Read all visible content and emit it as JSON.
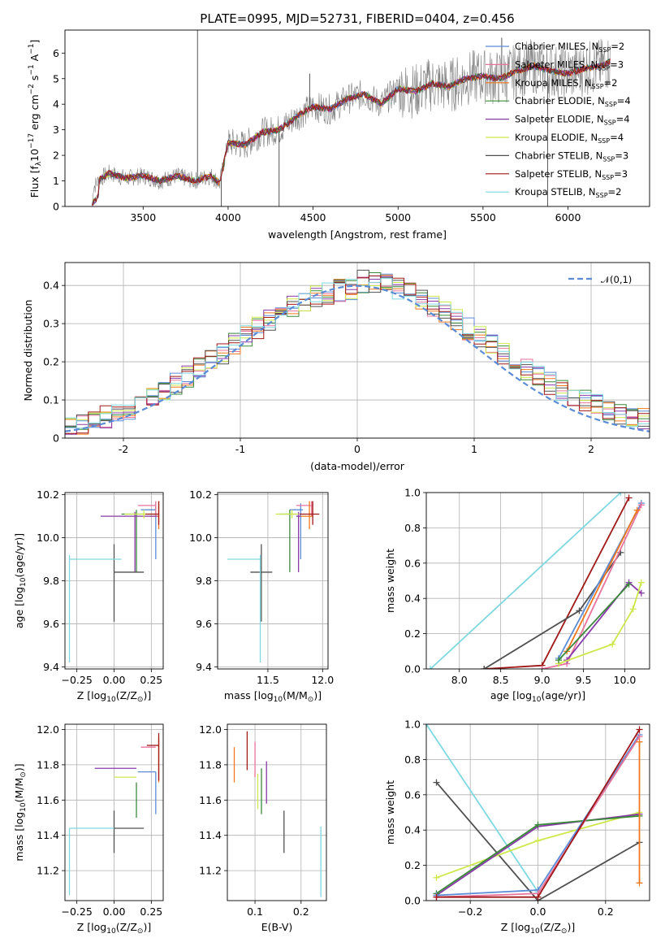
{
  "figure": {
    "title": "PLATE=0995, MJD=52731, FIBERID=0404, z=0.456"
  },
  "models": [
    {
      "name": "Chabrier MILES, N$_{SSP}$=2",
      "label": "Chabrier MILES, N",
      "sub": "SSP",
      "tail": "=2",
      "color": "#5b8bd6"
    },
    {
      "name": "Salpeter MILES, N$_{SSP}$=3",
      "label": "Salpeter MILES, N",
      "sub": "SSP",
      "tail": "=3",
      "color": "#e8739b"
    },
    {
      "name": "Kroupa MILES, N$_{SSP}$=2",
      "label": "Kroupa MILES, N",
      "sub": "SSP",
      "tail": "=2",
      "color": "#f0781e"
    },
    {
      "name": "Chabrier ELODIE, N$_{SSP}$=4",
      "label": "Chabrier ELODIE, N",
      "sub": "SSP",
      "tail": "=4",
      "color": "#3a8a3a"
    },
    {
      "name": "Salpeter ELODIE, N$_{SSP}$=4",
      "label": "Salpeter ELODIE, N",
      "sub": "SSP",
      "tail": "=4",
      "color": "#8a3aa8"
    },
    {
      "name": "Kroupa ELODIE, N$_{SSP}$=4",
      "label": "Kroupa ELODIE, N",
      "sub": "SSP",
      "tail": "=4",
      "color": "#cde84a"
    },
    {
      "name": "Chabrier STELIB, N$_{SSP}$=3",
      "label": "Chabrier STELIB, N",
      "sub": "SSP",
      "tail": "=3",
      "color": "#505050"
    },
    {
      "name": "Salpeter STELIB, N$_{SSP}$=3",
      "label": "Salpeter STELIB, N",
      "sub": "SSP",
      "tail": "=3",
      "color": "#a01818"
    },
    {
      "name": "Kroupa STELIB, N$_{SSP}$=2",
      "label": "Kroupa STELIB, N",
      "sub": "SSP",
      "tail": "=2",
      "color": "#7fd8e0"
    }
  ],
  "chart_data": [
    {
      "id": "spectrum",
      "type": "line",
      "xlabel": "wavelength [Angstrom, rest frame]",
      "ylabel_pre": "Flux [f",
      "ylabel_sub": "λ",
      "ylabel_mid": "10",
      "ylabel_sup": "−17",
      "ylabel_post": " erg cm",
      "ylabel_sup2": "−2",
      "ylabel_post2": " s",
      "ylabel_sup3": "−1",
      "ylabel_post3": " A",
      "ylabel_sup4": "−1",
      "ylabel_end": "]",
      "xlim": [
        3040,
        6480
      ],
      "ylim": [
        0,
        6.9
      ],
      "xticks": [
        3500,
        4000,
        4500,
        5000,
        5500,
        6000
      ],
      "yticks": [
        0,
        1,
        2,
        3,
        4,
        5,
        6
      ],
      "model_curve": {
        "x": [
          3200,
          3250,
          3300,
          3400,
          3500,
          3600,
          3700,
          3800,
          3900,
          3950,
          4000,
          4100,
          4200,
          4300,
          4400,
          4500,
          4600,
          4700,
          4800,
          4900,
          5000,
          5100,
          5200,
          5300,
          5400,
          5500,
          5600,
          5700,
          5800,
          5900,
          6000,
          6100,
          6200,
          6250
        ],
        "y": [
          0.7,
          1.1,
          1.3,
          1.1,
          1.2,
          1.0,
          1.2,
          1.0,
          1.2,
          0.9,
          2.5,
          2.4,
          2.9,
          3.0,
          3.5,
          3.9,
          3.8,
          4.2,
          4.4,
          4.0,
          4.6,
          4.5,
          4.8,
          4.7,
          5.0,
          5.1,
          5.0,
          5.3,
          5.5,
          5.3,
          5.2,
          5.4,
          5.5,
          5.7
        ]
      },
      "data_spikes": [
        [
          3820,
          6.9
        ],
        [
          4300,
          0
        ],
        [
          3960,
          0
        ],
        [
          5880,
          0
        ],
        [
          4480,
          5.2
        ],
        [
          5610,
          6.6
        ]
      ]
    },
    {
      "id": "residual_hist",
      "type": "histogram",
      "xlabel": "(data-model)/error",
      "ylabel": "Normed distribution",
      "xlim": [
        -2.5,
        2.5
      ],
      "ylim": [
        0,
        0.46
      ],
      "xticks": [
        -2,
        -1,
        0,
        1,
        2
      ],
      "yticks": [
        0.0,
        0.1,
        0.2,
        0.3,
        0.4
      ],
      "reference": {
        "name": "𝒩(0,1)",
        "mean": 0,
        "sigma": 1,
        "color": "#5b8bd6"
      }
    },
    {
      "id": "age_vs_Z",
      "type": "scatter",
      "xlabel_pre": "Z [log",
      "xlabel_sub": "10",
      "xlabel_post": "(Z/Z",
      "xlabel_sub2": "⊙",
      "xlabel_end": ")]",
      "ylabel_pre": "age  [log",
      "ylabel_sub": "10",
      "ylabel_post": "(age/yr)]",
      "xlim": [
        -0.33,
        0.33
      ],
      "ylim": [
        9.39,
        10.21
      ],
      "xticks": [
        -0.25,
        0.0,
        0.25
      ],
      "xticklabels": [
        "−0.25",
        "0.00",
        "0.25"
      ],
      "yticks": [
        9.4,
        9.6,
        9.8,
        10.0,
        10.2
      ],
      "yticklabels": [
        "9.4",
        "9.6",
        "9.8",
        "10.0",
        "10.2"
      ],
      "points": [
        {
          "m": 0,
          "x": 0.28,
          "y": 10.13,
          "xerr": [
            0.1,
            0.0
          ],
          "yerr": [
            0.23,
            0.03
          ]
        },
        {
          "m": 1,
          "x": 0.28,
          "y": 10.15,
          "xerr": [
            0.12,
            0.0
          ],
          "yerr": [
            0.05,
            0.02
          ]
        },
        {
          "m": 2,
          "x": 0.3,
          "y": 10.1,
          "xerr": [
            0.06,
            0.0
          ],
          "yerr": [
            0.06,
            0.07
          ]
        },
        {
          "m": 3,
          "x": 0.15,
          "y": 10.11,
          "xerr": [
            0.1,
            0.05
          ],
          "yerr": [
            0.27,
            0.02
          ]
        },
        {
          "m": 4,
          "x": 0.14,
          "y": 10.1,
          "xerr": [
            0.23,
            0.15
          ],
          "yerr": [
            0.26,
            0.02
          ]
        },
        {
          "m": 5,
          "x": 0.2,
          "y": 10.11,
          "xerr": [
            0.13,
            0.08
          ],
          "yerr": [
            0.02,
            0.02
          ]
        },
        {
          "m": 6,
          "x": 0.0,
          "y": 9.84,
          "xerr": [
            0.0,
            0.2
          ],
          "yerr": [
            0.23,
            0.13
          ]
        },
        {
          "m": 7,
          "x": 0.3,
          "y": 10.11,
          "xerr": [
            0.09,
            0.0
          ],
          "yerr": [
            0.05,
            0.06
          ]
        },
        {
          "m": 8,
          "x": -0.3,
          "y": 9.9,
          "xerr": [
            0.0,
            0.35
          ],
          "yerr": [
            0.48,
            0.02
          ]
        }
      ]
    },
    {
      "id": "age_vs_mass",
      "type": "scatter",
      "xlabel_pre": "mass [log",
      "xlabel_sub": "10",
      "xlabel_post": "(M/M",
      "xlabel_sub2": "⊙",
      "xlabel_end": ")]",
      "xlim": [
        11.04,
        12.05
      ],
      "ylim": [
        9.39,
        10.21
      ],
      "xticks": [
        11.5,
        12.0
      ],
      "xticklabels": [
        "11.5",
        "12.0"
      ],
      "yticks": [
        9.4,
        9.6,
        9.8,
        10.0,
        10.2
      ],
      "yticklabels": [
        "9.4",
        "9.6",
        "9.8",
        "10.0",
        "10.2"
      ],
      "points": [
        {
          "m": 0,
          "x": 11.8,
          "y": 10.13,
          "xerr": [
            0.1,
            0.02
          ],
          "yerr": [
            0.23,
            0.03
          ]
        },
        {
          "m": 1,
          "x": 11.9,
          "y": 10.15,
          "xerr": [
            0.14,
            0.0
          ],
          "yerr": [
            0.05,
            0.02
          ]
        },
        {
          "m": 2,
          "x": 11.88,
          "y": 10.1,
          "xerr": [
            0.1,
            0.03
          ],
          "yerr": [
            0.06,
            0.07
          ]
        },
        {
          "m": 3,
          "x": 11.7,
          "y": 10.11,
          "xerr": [
            0.09,
            0.06
          ],
          "yerr": [
            0.27,
            0.02
          ]
        },
        {
          "m": 4,
          "x": 11.78,
          "y": 10.1,
          "xerr": [
            0.02,
            0.02
          ],
          "yerr": [
            0.26,
            0.02
          ]
        },
        {
          "m": 5,
          "x": 11.72,
          "y": 10.11,
          "xerr": [
            0.15,
            0.06
          ],
          "yerr": [
            0.02,
            0.02
          ]
        },
        {
          "m": 6,
          "x": 11.44,
          "y": 9.84,
          "xerr": [
            0.1,
            0.1
          ],
          "yerr": [
            0.23,
            0.13
          ]
        },
        {
          "m": 7,
          "x": 11.91,
          "y": 10.11,
          "xerr": [
            0.12,
            0.06
          ],
          "yerr": [
            0.05,
            0.06
          ]
        },
        {
          "m": 8,
          "x": 11.43,
          "y": 9.9,
          "xerr": [
            0.3,
            0.0
          ],
          "yerr": [
            0.48,
            0.02
          ]
        }
      ]
    },
    {
      "id": "weight_vs_age",
      "type": "line",
      "xlabel_pre": "age  [log",
      "xlabel_sub": "10",
      "xlabel_post": "(age/yr)]",
      "ylabel": "mass weight",
      "xlim": [
        7.6,
        10.3
      ],
      "ylim": [
        0,
        1
      ],
      "xticks": [
        8.0,
        8.5,
        9.0,
        9.5,
        10.0
      ],
      "xticklabels": [
        "8.0",
        "8.5",
        "9.0",
        "9.5",
        "10.0"
      ],
      "yticks": [
        0,
        0.2,
        0.4,
        0.6,
        0.8,
        1.0
      ],
      "yticklabels": [
        "0.0",
        "0.2",
        "0.4",
        "0.6",
        "0.8",
        "1.0"
      ],
      "series": [
        {
          "m": 8,
          "x": [
            7.65,
            9.95
          ],
          "y": [
            0.0,
            1.0
          ]
        },
        {
          "m": 7,
          "x": [
            8.3,
            9.0,
            10.05
          ],
          "y": [
            0.0,
            0.02,
            0.97
          ]
        },
        {
          "m": 6,
          "x": [
            8.3,
            9.45,
            9.95
          ],
          "y": [
            0.0,
            0.33,
            0.66
          ]
        },
        {
          "m": 0,
          "x": [
            9.2,
            10.2
          ],
          "y": [
            0.06,
            0.94
          ]
        },
        {
          "m": 1,
          "x": [
            9.0,
            9.3,
            10.2
          ],
          "y": [
            0.0,
            0.03,
            0.93
          ]
        },
        {
          "m": 2,
          "x": [
            9.3,
            10.15
          ],
          "y": [
            0.1,
            0.9
          ]
        },
        {
          "m": 4,
          "x": [
            9.3,
            10.05,
            10.2
          ],
          "y": [
            0.05,
            0.49,
            0.43
          ]
        },
        {
          "m": 5,
          "x": [
            9.2,
            9.85,
            10.1,
            10.2
          ],
          "y": [
            0.03,
            0.14,
            0.34,
            0.49
          ]
        },
        {
          "m": 3,
          "x": [
            9.2,
            10.05
          ],
          "y": [
            0.05,
            0.48
          ]
        }
      ]
    },
    {
      "id": "mass_vs_Z",
      "type": "scatter",
      "xlabel_pre": "Z [log",
      "xlabel_sub": "10",
      "xlabel_post": "(Z/Z",
      "xlabel_sub2": "⊙",
      "xlabel_end": ")]",
      "ylabel_pre": "mass [log",
      "ylabel_sub": "10",
      "ylabel_post": "(M/M",
      "ylabel_sub2": "⊙",
      "ylabel_end": ")]",
      "xlim": [
        -0.33,
        0.33
      ],
      "ylim": [
        11.03,
        12.03
      ],
      "xticks": [
        -0.25,
        0.0,
        0.25
      ],
      "xticklabels": [
        "−0.25",
        "0.00",
        "0.25"
      ],
      "yticks": [
        11.2,
        11.4,
        11.6,
        11.8,
        12.0
      ],
      "yticklabels": [
        "11.2",
        "11.4",
        "11.6",
        "11.8",
        "12.0"
      ],
      "points": [
        {
          "m": 0,
          "x": 0.28,
          "y": 11.76,
          "xerr": [
            0.12,
            0.0
          ],
          "yerr": [
            0.24,
            0.0
          ]
        },
        {
          "m": 1,
          "x": 0.28,
          "y": 11.9,
          "xerr": [
            0.1,
            0.0
          ],
          "yerr": [
            0.0,
            0.0
          ]
        },
        {
          "m": 2,
          "x": 0.3,
          "y": 11.85,
          "xerr": [
            0.0,
            0.0
          ],
          "yerr": [
            0.15,
            0.1
          ]
        },
        {
          "m": 3,
          "x": 0.15,
          "y": 11.7,
          "xerr": [
            0.0,
            0.0
          ],
          "yerr": [
            0.2,
            0.0
          ]
        },
        {
          "m": 4,
          "x": 0.15,
          "y": 11.78,
          "xerr": [
            0.28,
            0.0
          ],
          "yerr": [
            0.0,
            0.0
          ]
        },
        {
          "m": 5,
          "x": 0.15,
          "y": 11.73,
          "xerr": [
            0.15,
            0.0
          ],
          "yerr": [
            0.0,
            0.0
          ]
        },
        {
          "m": 6,
          "x": 0.0,
          "y": 11.44,
          "xerr": [
            0.0,
            0.2
          ],
          "yerr": [
            0.14,
            0.1
          ]
        },
        {
          "m": 7,
          "x": 0.3,
          "y": 11.91,
          "xerr": [
            0.08,
            0.0
          ],
          "yerr": [
            0.2,
            0.07
          ]
        },
        {
          "m": 8,
          "x": -0.3,
          "y": 11.44,
          "xerr": [
            0.0,
            0.3
          ],
          "yerr": [
            0.38,
            0.0
          ]
        }
      ]
    },
    {
      "id": "mass_vs_ebv",
      "type": "scatter",
      "xlabel": "E(B-V)",
      "xlim": [
        0.04,
        0.255
      ],
      "ylim": [
        11.03,
        12.03
      ],
      "xticks": [
        0.1,
        0.2
      ],
      "xticklabels": [
        "0.1",
        "0.2"
      ],
      "yticks": [
        11.2,
        11.4,
        11.6,
        11.8,
        12.0
      ],
      "yticklabels": [
        "11.2",
        "11.4",
        "11.6",
        "11.8",
        "12.0"
      ],
      "points": [
        {
          "m": 2,
          "x": 0.055,
          "y": 11.8,
          "yerr": [
            0.1,
            0.1
          ]
        },
        {
          "m": 7,
          "x": 0.083,
          "y": 11.87,
          "yerr": [
            0.1,
            0.12
          ]
        },
        {
          "m": 1,
          "x": 0.1,
          "y": 11.83,
          "yerr": [
            0.1,
            0.1
          ]
        },
        {
          "m": 5,
          "x": 0.106,
          "y": 11.65,
          "yerr": [
            0.1,
            0.1
          ]
        },
        {
          "m": 3,
          "x": 0.114,
          "y": 11.65,
          "yerr": [
            0.13,
            0.13
          ]
        },
        {
          "m": 4,
          "x": 0.125,
          "y": 11.7,
          "yerr": [
            0.12,
            0.12
          ]
        },
        {
          "m": 6,
          "x": 0.163,
          "y": 11.42,
          "yerr": [
            0.12,
            0.12
          ]
        },
        {
          "m": 8,
          "x": 0.243,
          "y": 11.25,
          "yerr": [
            0.2,
            0.2
          ]
        }
      ]
    },
    {
      "id": "weight_vs_Z",
      "type": "line",
      "xlabel_pre": "Z [log",
      "xlabel_sub": "10",
      "xlabel_post": "(Z/Z",
      "xlabel_sub2": "⊙",
      "xlabel_end": ")]",
      "ylabel": "mass weight",
      "xlim": [
        -0.33,
        0.33
      ],
      "ylim": [
        0,
        1
      ],
      "xticks": [
        -0.2,
        0.0,
        0.2
      ],
      "xticklabels": [
        "−0.2",
        "0.0",
        "0.2"
      ],
      "yticks": [
        0,
        0.2,
        0.4,
        0.6,
        0.8,
        1.0
      ],
      "yticklabels": [
        "0.0",
        "0.2",
        "0.4",
        "0.6",
        "0.8",
        "1.0"
      ],
      "series": [
        {
          "m": 8,
          "x": [
            -0.33,
            0.0
          ],
          "y": [
            1.0,
            0.05
          ]
        },
        {
          "m": 6,
          "x": [
            -0.3,
            0.0,
            0.3
          ],
          "y": [
            0.67,
            0.0,
            0.33
          ]
        },
        {
          "m": 5,
          "x": [
            -0.3,
            0.0,
            0.3
          ],
          "y": [
            0.13,
            0.34,
            0.5
          ]
        },
        {
          "m": 4,
          "x": [
            -0.3,
            0.0,
            0.3
          ],
          "y": [
            0.03,
            0.42,
            0.49
          ]
        },
        {
          "m": 3,
          "x": [
            -0.3,
            0.0,
            0.3
          ],
          "y": [
            0.04,
            0.43,
            0.48
          ]
        },
        {
          "m": 0,
          "x": [
            -0.3,
            0.0,
            0.3
          ],
          "y": [
            0.03,
            0.06,
            0.94
          ]
        },
        {
          "m": 1,
          "x": [
            -0.3,
            0.0,
            0.3
          ],
          "y": [
            0.02,
            0.04,
            0.93
          ]
        },
        {
          "m": 7,
          "x": [
            -0.3,
            0.0,
            0.3
          ],
          "y": [
            0.02,
            0.02,
            0.97
          ]
        },
        {
          "m": 2,
          "x": [
            0.3,
            0.3
          ],
          "y": [
            0.1,
            0.9
          ]
        }
      ]
    }
  ]
}
